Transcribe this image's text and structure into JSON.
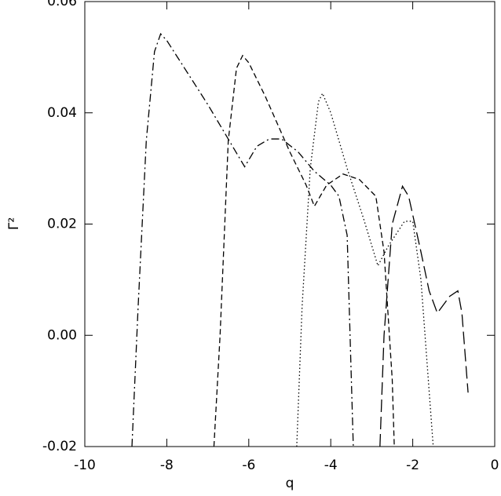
{
  "chart_data": {
    "type": "line",
    "x_label": "q",
    "y_label": "Γ²",
    "xlim": [
      -10,
      0
    ],
    "xticks": [
      -10,
      -8,
      -6,
      -4,
      -2,
      0
    ],
    "ylim": [
      -0.02,
      0.06
    ],
    "yticks": [
      -0.02,
      {
        "value": 0,
        "label": "0.00"
      },
      0.02,
      0.04,
      0.06
    ],
    "series": [
      {
        "color": "#000000",
        "dash": "10,4,2,4",
        "x": [
          -8.85,
          -8.7,
          -8.5,
          -8.3,
          -8.15,
          -8.0,
          -7.0,
          -6.1,
          -5.8,
          -5.5,
          -5.2,
          -4.8,
          -4.4,
          -4.0,
          -3.8,
          -3.6,
          -3.45
        ],
        "values": [
          -0.02,
          0.005,
          0.035,
          0.051,
          0.0542,
          0.053,
          0.0415,
          0.0303,
          0.034,
          0.0353,
          0.0353,
          0.033,
          0.0295,
          0.027,
          0.025,
          0.018,
          -0.02
        ]
      },
      {
        "color": "#000000",
        "dash": "7,4",
        "x": [
          -6.85,
          -6.7,
          -6.5,
          -6.3,
          -6.15,
          -6.0,
          -5.6,
          -5.0,
          -4.6,
          -4.4,
          -4.1,
          -3.7,
          -3.3,
          -2.9,
          -2.7,
          -2.5,
          -2.45
        ],
        "values": [
          -0.02,
          0.0,
          0.035,
          0.048,
          0.0503,
          0.049,
          0.043,
          0.033,
          0.027,
          0.0232,
          0.027,
          0.029,
          0.028,
          0.025,
          0.015,
          -0.008,
          -0.02
        ]
      },
      {
        "color": "#000000",
        "dash": "1.5,3",
        "x": [
          -4.83,
          -4.7,
          -4.5,
          -4.3,
          -4.2,
          -4.0,
          -3.6,
          -3.2,
          -2.85,
          -2.6,
          -2.2,
          -2.0,
          -1.8,
          -1.6,
          -1.5
        ],
        "values": [
          -0.02,
          0.005,
          0.03,
          0.042,
          0.0435,
          0.04,
          0.03,
          0.021,
          0.0125,
          0.016,
          0.0205,
          0.0205,
          0.01,
          -0.01,
          -0.02
        ]
      },
      {
        "color": "#000000",
        "dash": "16,6",
        "x": [
          -2.8,
          -2.7,
          -2.5,
          -2.25,
          -2.1,
          -1.8,
          -1.6,
          -1.4,
          -1.1,
          -0.9,
          -0.8,
          -0.65
        ],
        "values": [
          -0.02,
          0.0,
          0.02,
          0.0268,
          0.025,
          0.015,
          0.008,
          0.004,
          0.007,
          0.008,
          0.004,
          -0.0103
        ]
      }
    ]
  }
}
